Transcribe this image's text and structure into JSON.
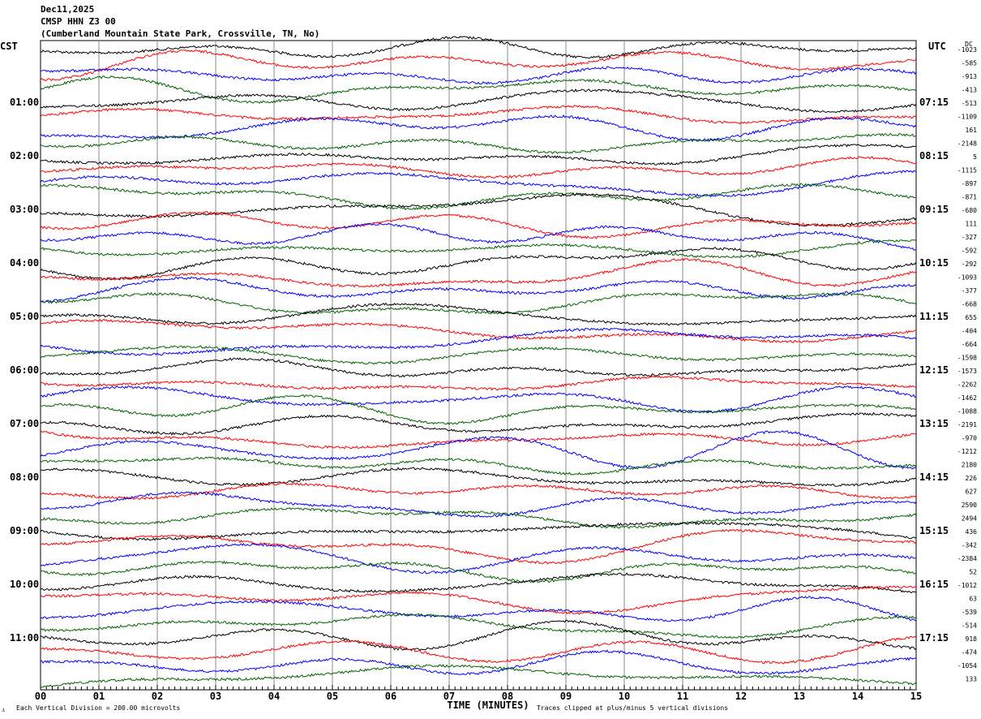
{
  "chart_data": {
    "type": "line",
    "title": [
      "Dec11,2025",
      "CMSP HHN Z3 00",
      "(Cumberland Mountain State Park, Crossville, TN, No)"
    ],
    "left_zone": "CST",
    "right_zone": "UTC",
    "dc_header": "DC",
    "xlabel": "TIME (MINUTES)",
    "xlim": [
      0,
      15
    ],
    "x_ticks": [
      "00",
      "01",
      "02",
      "03",
      "04",
      "05",
      "06",
      "07",
      "08",
      "09",
      "10",
      "11",
      "12",
      "13",
      "14",
      "15"
    ],
    "left_hour_labels": [
      "01:00",
      "02:00",
      "03:00",
      "04:00",
      "05:00",
      "06:00",
      "07:00",
      "08:00",
      "09:00",
      "10:00",
      "11:00"
    ],
    "right_hour_labels": [
      "07:15",
      "08:15",
      "09:15",
      "10:15",
      "11:15",
      "12:15",
      "13:15",
      "14:15",
      "15:15",
      "16:15",
      "17:15"
    ],
    "dc_offsets": [
      -1023,
      -585,
      -913,
      -413,
      -513,
      -1109,
      161,
      -2148,
      5,
      -1115,
      -897,
      -871,
      -680,
      111,
      -327,
      -592,
      -292,
      -1093,
      -377,
      -668,
      655,
      -404,
      -664,
      -1598,
      -1573,
      -2262,
      -1462,
      -1088,
      -2191,
      -970,
      -1212,
      2180,
      226,
      627,
      2590,
      2494,
      436,
      -342,
      -2384,
      52,
      -1012,
      63,
      -539,
      -514,
      918,
      -474,
      -1054,
      133
    ],
    "trace_colors": [
      "#000000",
      "#ff0000",
      "#0000ff",
      "#006400"
    ],
    "grid": true,
    "footer_left": "Each Vertical Division =  200.00 microvolts",
    "footer_right": "Traces clipped at plus/minus 5 vertical divisions",
    "corner_mark": "⚓"
  }
}
